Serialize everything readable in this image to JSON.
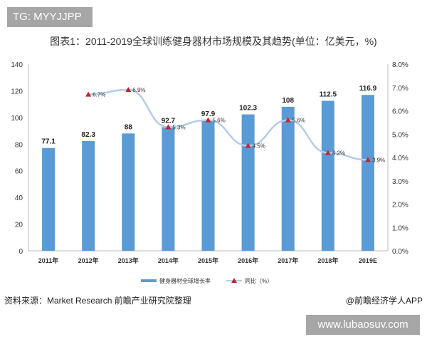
{
  "badge": "TG: MYYJJPP",
  "footer": {
    "source": "资料来源：Market Research 前瞻产业研究院整理",
    "app": "@前瞻经济学人APP",
    "site": "www.lubaosuv.com"
  },
  "chart_data": {
    "type": "bar+line",
    "title": "图表1：2011-2019全球训练健身器材市场规模及其趋势(单位：亿美元，%)",
    "categories": [
      "2011年",
      "2012年",
      "2013年",
      "2014年",
      "2015年",
      "2016年",
      "2017年",
      "2018年",
      "2019E"
    ],
    "series": [
      {
        "name": "健身器材全球增长率",
        "type": "bar",
        "axis": "left",
        "color": "#5b9bd5",
        "values": [
          77.1,
          82.3,
          88,
          92.7,
          97.9,
          102.3,
          108,
          112.5,
          116.9
        ],
        "labels": [
          "77.1",
          "82.3",
          "88",
          "92.7",
          "97.9",
          "102.3",
          "108",
          "112.5",
          "116.9"
        ]
      },
      {
        "name": "同比（%）",
        "type": "line",
        "axis": "right",
        "color": "#b4cde6",
        "marker_color": "#c0272d",
        "values": [
          null,
          6.7,
          6.9,
          5.3,
          5.6,
          4.5,
          5.6,
          4.2,
          3.9
        ],
        "labels": [
          "",
          "6.7%",
          "6.9%",
          "5.3%",
          "5.6%",
          "4.5%",
          "5.6%",
          "4.2%",
          "3.9%"
        ]
      }
    ],
    "left_axis": {
      "range": [
        0,
        140
      ],
      "ticks": [
        "0",
        "20",
        "40",
        "60",
        "80",
        "100",
        "120",
        "140"
      ]
    },
    "right_axis": {
      "range": [
        0,
        8
      ],
      "ticks": [
        "0.0%",
        "1.0%",
        "2.0%",
        "3.0%",
        "4.0%",
        "5.0%",
        "6.0%",
        "7.0%",
        "8.0%"
      ]
    },
    "legend": "bottom",
    "grid": false
  }
}
